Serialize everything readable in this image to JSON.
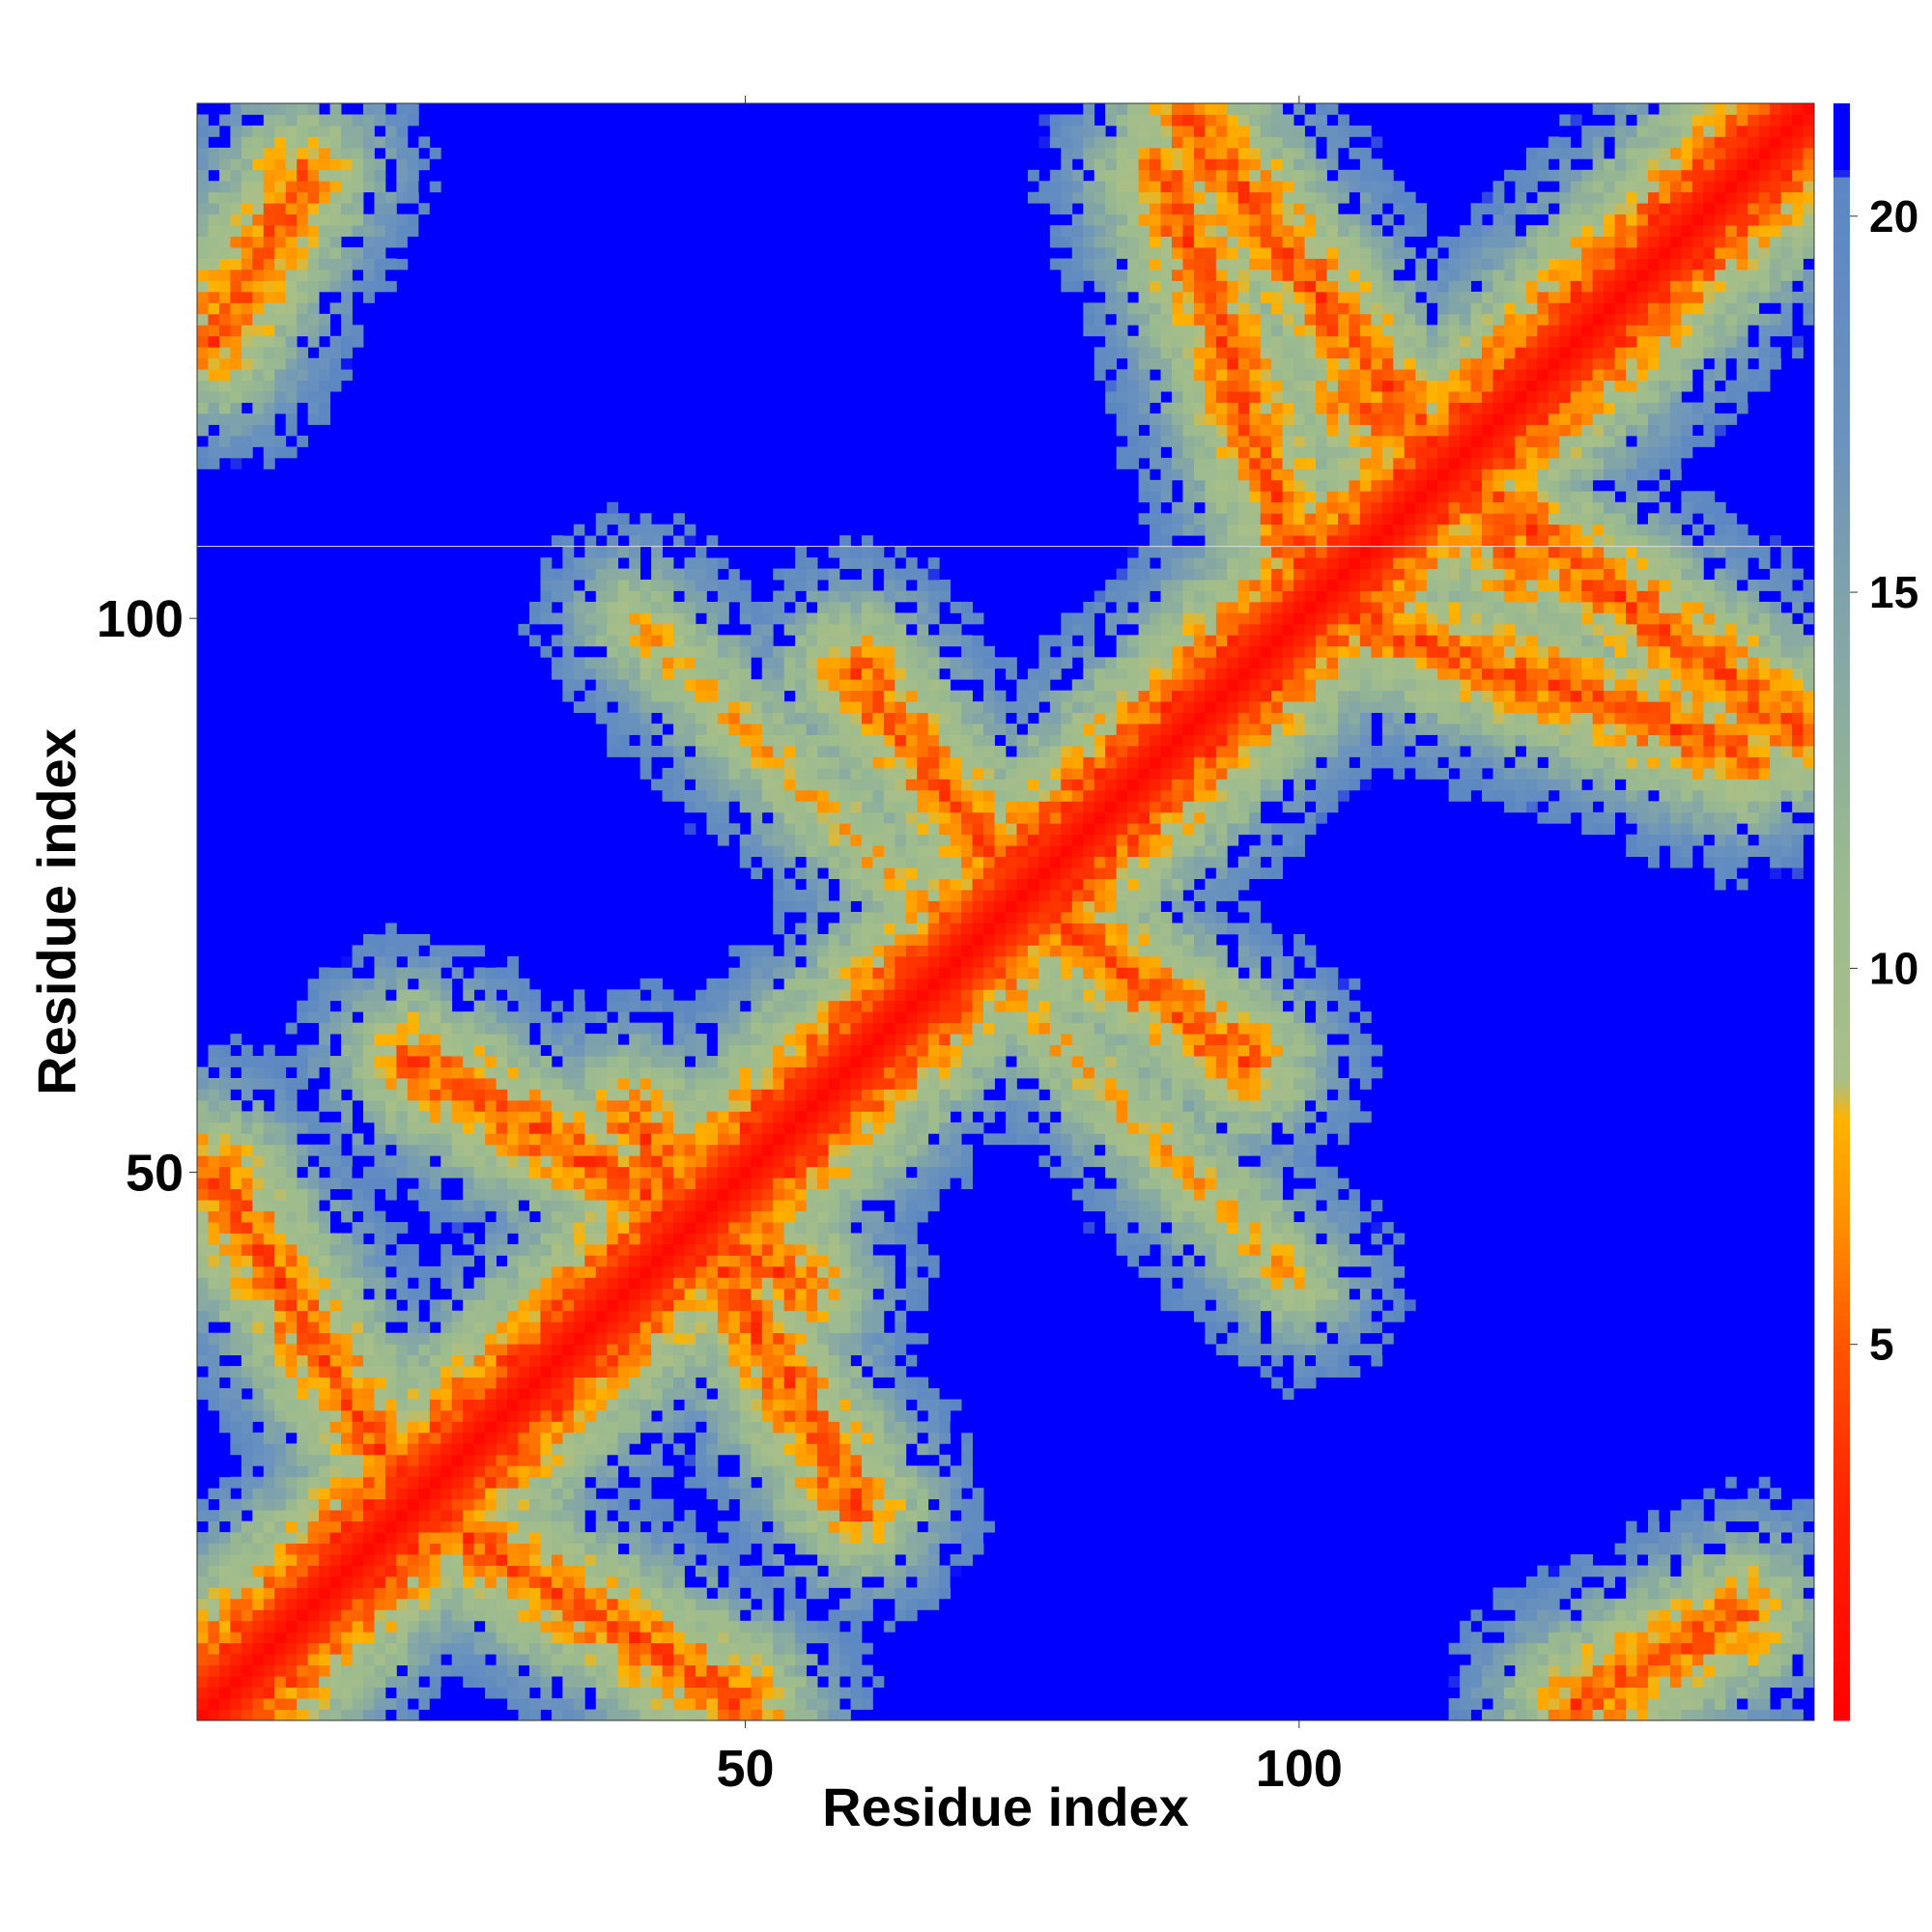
{
  "chart_data": {
    "type": "heatmap",
    "title": "",
    "xlabel": "Residue index",
    "ylabel": "Residue index",
    "n_residues": 146,
    "xlim": [
      1,
      146
    ],
    "ylim": [
      1,
      146
    ],
    "x_ticks": [
      50,
      100
    ],
    "y_ticks": [
      50,
      100
    ],
    "grid": false,
    "colorbar": {
      "ticks": [
        5,
        10,
        15,
        20
      ],
      "range": [
        0,
        21.5
      ],
      "stops": [
        {
          "v": 0,
          "color": "#ff0000"
        },
        {
          "v": 3.0,
          "color": "#ff2600"
        },
        {
          "v": 5.0,
          "color": "#ff5500"
        },
        {
          "v": 6.5,
          "color": "#ff8c00"
        },
        {
          "v": 8.0,
          "color": "#ffb300"
        },
        {
          "v": 8.5,
          "color": "#a9bf87"
        },
        {
          "v": 11.0,
          "color": "#9cbb8e"
        },
        {
          "v": 14.0,
          "color": "#87a9a3"
        },
        {
          "v": 17.0,
          "color": "#6b93bd"
        },
        {
          "v": 20.5,
          "color": "#5b87c3"
        },
        {
          "v": 20.6,
          "color": "#0000ff"
        },
        {
          "v": 21.5,
          "color": "#0000ff"
        }
      ]
    },
    "contact_bands": [
      {
        "residues_a": [
          20,
          50
        ],
        "residues_b": [
          2,
          20
        ],
        "direction": "antiparallel",
        "contacts": "near"
      },
      {
        "residues_a": [
          20,
          55
        ],
        "residues_b": [
          40,
          60
        ],
        "direction": "antiparallel",
        "contacts": "near"
      },
      {
        "residues_a": [
          60,
          75
        ],
        "residues_b": [
          75,
          95
        ],
        "direction": "antiparallel",
        "contacts": "near"
      },
      {
        "residues_a": [
          88,
          100
        ],
        "residues_b": [
          105,
          140
        ],
        "direction": "antiparallel",
        "contacts": "near"
      },
      {
        "residues_a": [
          2,
          10
        ],
        "residues_b": [
          125,
          140
        ],
        "direction": "parallel",
        "contacts": "near"
      },
      {
        "residues_a": [
          105,
          145
        ],
        "residues_b": [
          90,
          120
        ],
        "direction": "antiparallel",
        "contacts": "near"
      },
      {
        "residues_a": [
          40,
          70
        ],
        "residues_b": [
          70,
          100
        ],
        "direction": "antiparallel",
        "contacts": "mid"
      }
    ]
  }
}
